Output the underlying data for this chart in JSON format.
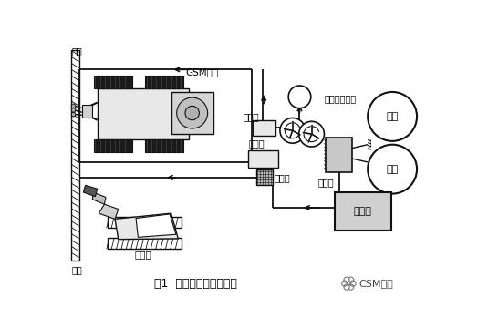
{
  "title": "图1  设备施工平面概化图",
  "csm_label": "CSM工法",
  "bg_color": "#ffffff",
  "labels": {
    "wall": "墙体",
    "trench": "沟槽",
    "gsm_drill": "GSM钻机",
    "conveyor_pump": "输送泵",
    "cement_mixer": "水泥浆搅拌桶",
    "air_compressor": "空压机",
    "hose_pump": "胶管泵",
    "mixer": "混合器",
    "cement1": "水泥",
    "cement2": "水泥",
    "slurry_truck": "泥浆车",
    "excavator": "挖掘机"
  }
}
